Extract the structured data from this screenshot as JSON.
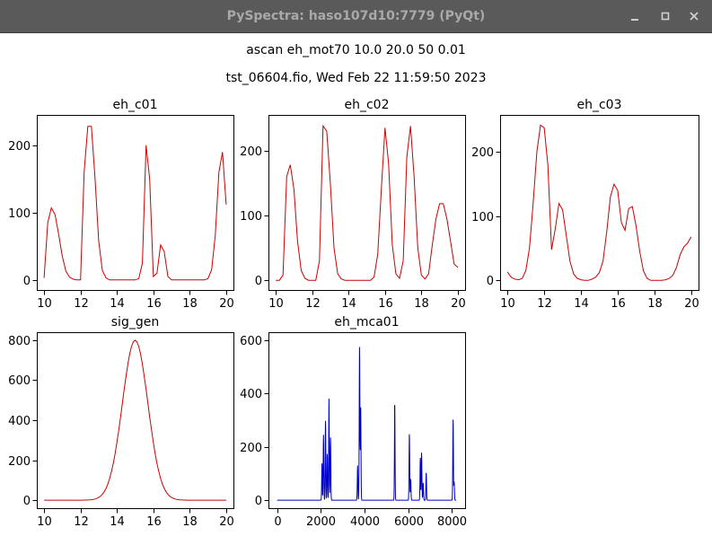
{
  "window": {
    "title": "PySpectra: haso107d10:7779 (PyQt)",
    "buttons": {
      "minimize": "minimize-icon",
      "maximize": "maximize-icon",
      "close": "close-icon"
    }
  },
  "header": {
    "line1": "ascan eh_mot70 10.0 20.0 50 0.01",
    "line2": "tst_06604.fio, Wed Feb 22 11:59:50 2023"
  },
  "colors": {
    "red": "#cc0000",
    "blue": "#0000cc",
    "axis": "#000000"
  },
  "chart_data": [
    {
      "type": "line",
      "title": "eh_c01",
      "xlim": [
        9.6,
        20.4
      ],
      "ylim": [
        -15,
        245
      ],
      "xticks": [
        10,
        12,
        14,
        16,
        18,
        20
      ],
      "yticks": [
        0,
        100,
        200
      ],
      "color": "#cc0000",
      "x": [
        10.0,
        10.2,
        10.4,
        10.6,
        10.8,
        11.0,
        11.2,
        11.4,
        11.6,
        11.8,
        12.0,
        12.2,
        12.4,
        12.6,
        12.8,
        13.0,
        13.2,
        13.4,
        13.6,
        13.8,
        14.0,
        14.2,
        14.4,
        14.6,
        14.8,
        15.0,
        15.2,
        15.4,
        15.6,
        15.8,
        16.0,
        16.2,
        16.4,
        16.6,
        16.8,
        17.0,
        17.2,
        17.4,
        17.6,
        17.8,
        18.0,
        18.2,
        18.4,
        18.6,
        18.8,
        19.0,
        19.2,
        19.4,
        19.6,
        19.8,
        20.0
      ],
      "y": [
        3,
        85,
        107,
        97,
        68,
        35,
        13,
        4,
        1,
        0,
        0,
        160,
        228,
        228,
        150,
        58,
        14,
        3,
        0,
        0,
        0,
        0,
        0,
        0,
        0,
        0,
        2,
        25,
        200,
        150,
        5,
        10,
        52,
        42,
        5,
        0,
        0,
        0,
        0,
        0,
        0,
        0,
        0,
        0,
        0,
        2,
        15,
        65,
        160,
        190,
        112
      ]
    },
    {
      "type": "line",
      "title": "eh_c02",
      "xlim": [
        9.6,
        20.4
      ],
      "ylim": [
        -15,
        255
      ],
      "xticks": [
        10,
        12,
        14,
        16,
        18,
        20
      ],
      "yticks": [
        0,
        100,
        200
      ],
      "color": "#cc0000",
      "x": [
        10.0,
        10.2,
        10.4,
        10.6,
        10.8,
        11.0,
        11.2,
        11.4,
        11.6,
        11.8,
        12.0,
        12.2,
        12.4,
        12.6,
        12.8,
        13.0,
        13.2,
        13.4,
        13.6,
        13.8,
        14.0,
        14.2,
        14.4,
        14.6,
        14.8,
        15.0,
        15.2,
        15.4,
        15.6,
        15.8,
        16.0,
        16.2,
        16.4,
        16.6,
        16.8,
        17.0,
        17.2,
        17.4,
        17.6,
        17.8,
        18.0,
        18.2,
        18.4,
        18.6,
        18.8,
        19.0,
        19.2,
        19.4,
        19.6,
        19.8,
        20.0
      ],
      "y": [
        0,
        0,
        8,
        160,
        178,
        140,
        60,
        15,
        3,
        0,
        0,
        0,
        30,
        238,
        230,
        150,
        50,
        10,
        2,
        0,
        0,
        0,
        0,
        0,
        0,
        0,
        0,
        5,
        40,
        140,
        235,
        180,
        55,
        10,
        3,
        30,
        190,
        238,
        160,
        50,
        8,
        2,
        10,
        55,
        95,
        118,
        118,
        95,
        60,
        25,
        20
      ]
    },
    {
      "type": "line",
      "title": "eh_c03",
      "xlim": [
        9.6,
        20.4
      ],
      "ylim": [
        -15,
        258
      ],
      "xticks": [
        10,
        12,
        14,
        16,
        18,
        20
      ],
      "yticks": [
        0,
        100,
        200
      ],
      "color": "#cc0000",
      "x": [
        10.0,
        10.2,
        10.4,
        10.6,
        10.8,
        11.0,
        11.2,
        11.4,
        11.6,
        11.8,
        12.0,
        12.2,
        12.4,
        12.6,
        12.8,
        13.0,
        13.2,
        13.4,
        13.6,
        13.8,
        14.0,
        14.2,
        14.4,
        14.6,
        14.8,
        15.0,
        15.2,
        15.4,
        15.6,
        15.8,
        16.0,
        16.2,
        16.4,
        16.6,
        16.8,
        17.0,
        17.2,
        17.4,
        17.6,
        17.8,
        18.0,
        18.2,
        18.4,
        18.6,
        18.8,
        19.0,
        19.2,
        19.4,
        19.6,
        19.8,
        20.0
      ],
      "y": [
        13,
        5,
        2,
        1,
        3,
        15,
        50,
        120,
        200,
        242,
        238,
        180,
        48,
        80,
        120,
        110,
        70,
        30,
        10,
        3,
        1,
        0,
        0,
        2,
        5,
        12,
        30,
        75,
        130,
        150,
        140,
        90,
        78,
        112,
        115,
        85,
        45,
        15,
        3,
        0,
        0,
        0,
        0,
        1,
        3,
        8,
        20,
        40,
        52,
        58,
        68
      ]
    },
    {
      "type": "line",
      "title": "sig_gen",
      "xlim": [
        9.6,
        20.4
      ],
      "ylim": [
        -40,
        840
      ],
      "xticks": [
        10,
        12,
        14,
        16,
        18,
        20
      ],
      "yticks": [
        0,
        200,
        400,
        600,
        800
      ],
      "color": "#cc0000",
      "gaussian": {
        "amplitude": 800,
        "center": 15.0,
        "sigma": 0.7,
        "x_start": 10,
        "x_end": 20,
        "points": 101
      }
    },
    {
      "type": "line",
      "title": "eh_mca01",
      "xlim": [
        -400,
        8600
      ],
      "ylim": [
        -30,
        630
      ],
      "xticks": [
        0,
        2000,
        4000,
        6000,
        8000
      ],
      "yticks": [
        0,
        200,
        400,
        600
      ],
      "color": "#0000cc",
      "peaks": [
        {
          "x": 2050,
          "height": 140
        },
        {
          "x": 2120,
          "height": 245
        },
        {
          "x": 2210,
          "height": 300
        },
        {
          "x": 2290,
          "height": 175
        },
        {
          "x": 2370,
          "height": 385
        },
        {
          "x": 2440,
          "height": 235
        },
        {
          "x": 3680,
          "height": 130
        },
        {
          "x": 3770,
          "height": 580
        },
        {
          "x": 3820,
          "height": 360
        },
        {
          "x": 5380,
          "height": 370
        },
        {
          "x": 6050,
          "height": 250
        },
        {
          "x": 6110,
          "height": 80
        },
        {
          "x": 6550,
          "height": 160
        },
        {
          "x": 6610,
          "height": 180
        },
        {
          "x": 6680,
          "height": 65
        },
        {
          "x": 6820,
          "height": 105
        },
        {
          "x": 8050,
          "height": 305
        },
        {
          "x": 8100,
          "height": 70
        }
      ]
    }
  ]
}
